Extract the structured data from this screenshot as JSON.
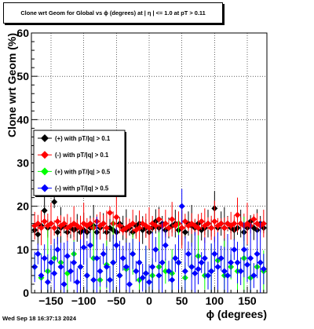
{
  "title": "Clone wrt Geom for Global vs ϕ (degrees) at |  η | <= 1.0 at pT > 0.11",
  "footer": "Wed Sep 18 16:37:13 2024",
  "chart_data": {
    "type": "scatter",
    "title": "Clone wrt Geom for Global vs ϕ (degrees) at |  η | <= 1.0 at pT > 0.11",
    "xlabel": "ϕ (degrees)",
    "ylabel": "Clone wrt Geom (%)",
    "xlim": [
      -180,
      180
    ],
    "ylim": [
      0,
      60
    ],
    "grid": true,
    "legend_position": "center-left",
    "x_ticks": [
      -150,
      -100,
      -50,
      0,
      50,
      100,
      150
    ],
    "x_tick_labels": [
      "−150",
      "−100",
      "−50",
      "0",
      "50",
      "100",
      "150"
    ],
    "y_ticks": [
      0,
      10,
      20,
      30,
      40,
      50,
      60
    ],
    "y_tick_labels": [
      "0",
      "10",
      "20",
      "30",
      "40",
      "50",
      "60"
    ],
    "series": [
      {
        "name": "(+) with pT/|q| > 0.1",
        "color": "#000000",
        "x": [
          -175,
          -170,
          -165,
          -160,
          -155,
          -150,
          -145,
          -140,
          -135,
          -130,
          -125,
          -120,
          -115,
          -110,
          -105,
          -100,
          -95,
          -90,
          -85,
          -80,
          -75,
          -70,
          -65,
          -60,
          -55,
          -50,
          -45,
          -40,
          -35,
          -30,
          -25,
          -20,
          -15,
          -10,
          -5,
          0,
          5,
          10,
          15,
          20,
          25,
          30,
          35,
          40,
          45,
          50,
          55,
          60,
          65,
          70,
          75,
          80,
          85,
          90,
          95,
          100,
          105,
          110,
          115,
          120,
          125,
          130,
          135,
          140,
          145,
          150,
          155,
          160,
          165,
          170,
          175
        ],
        "y": [
          14.5,
          13.5,
          15.5,
          19,
          15,
          16,
          21,
          14,
          15,
          15.5,
          14,
          15,
          14.5,
          15,
          14,
          14.5,
          14,
          15,
          15.5,
          14,
          15,
          16,
          14,
          15,
          14.5,
          14,
          16,
          15,
          14.5,
          15,
          14,
          15.5,
          16,
          14.5,
          15,
          14,
          15,
          16.5,
          15,
          16,
          14.5,
          15,
          15.5,
          16,
          14.5,
          15,
          14,
          16,
          15.5,
          15,
          16,
          14.5,
          15,
          16,
          15,
          19.5,
          15,
          16,
          15,
          16,
          15,
          14.5,
          15,
          16,
          14,
          15,
          16.5,
          15,
          14.5,
          16,
          15
        ]
      },
      {
        "name": "(-) with pT/|q| > 0.1",
        "color": "#ff0000",
        "x": [
          -175,
          -170,
          -165,
          -160,
          -155,
          -150,
          -145,
          -140,
          -135,
          -130,
          -125,
          -120,
          -115,
          -110,
          -105,
          -100,
          -95,
          -90,
          -85,
          -80,
          -75,
          -70,
          -65,
          -60,
          -55,
          -50,
          -45,
          -40,
          -35,
          -30,
          -25,
          -20,
          -15,
          -10,
          -5,
          0,
          5,
          10,
          15,
          20,
          25,
          30,
          35,
          40,
          45,
          50,
          55,
          60,
          65,
          70,
          75,
          80,
          85,
          90,
          95,
          100,
          105,
          110,
          115,
          120,
          125,
          130,
          135,
          140,
          145,
          150,
          155,
          160,
          165,
          170,
          175
        ],
        "y": [
          15.5,
          16,
          15,
          16.5,
          15.5,
          16,
          15,
          16.5,
          15.5,
          16,
          15,
          15.5,
          16,
          15.5,
          15,
          16,
          15.5,
          16,
          15,
          16.5,
          15.5,
          16,
          15,
          18.5,
          16,
          17.5,
          15.5,
          14.5,
          15,
          15.5,
          16,
          14.5,
          15,
          16,
          15.5,
          15,
          16,
          15.5,
          17,
          15.5,
          16,
          15,
          17,
          15.5,
          16,
          15,
          16.5,
          15.5,
          16,
          15.5,
          15,
          16.5,
          15.5,
          16,
          15,
          16.5,
          15.5,
          16,
          15,
          16,
          15.5,
          16,
          18,
          16,
          15.5,
          16,
          15.5,
          17,
          16,
          15.5,
          16
        ]
      },
      {
        "name": "(+) with pT/|q| > 0.5",
        "color": "#00ff00",
        "x": [
          -175,
          -165,
          -155,
          -145,
          -135,
          -125,
          -115,
          -105,
          -95,
          -85,
          -75,
          -65,
          -55,
          -45,
          -35,
          -25,
          -15,
          -5,
          5,
          15,
          25,
          35,
          45,
          55,
          65,
          75,
          85,
          95,
          105,
          115,
          125,
          135,
          145,
          155,
          165,
          175
        ],
        "y": [
          6,
          3.5,
          5,
          8,
          7,
          4.5,
          9,
          6,
          4,
          8,
          3,
          6.5,
          7,
          4,
          5.5,
          9,
          3,
          4.5,
          4,
          6,
          5,
          4.5,
          7,
          3.5,
          6,
          8.5,
          4,
          5,
          7.5,
          4,
          6,
          5,
          8,
          3.5,
          6,
          5
        ]
      },
      {
        "name": "(-) with pT/|q| > 0.5",
        "color": "#0000ff",
        "x": [
          -175,
          -170,
          -165,
          -160,
          -155,
          -150,
          -145,
          -140,
          -135,
          -130,
          -125,
          -120,
          -115,
          -110,
          -105,
          -100,
          -95,
          -90,
          -85,
          -80,
          -75,
          -70,
          -65,
          -60,
          -55,
          -50,
          -45,
          -40,
          -35,
          -30,
          -25,
          -20,
          -15,
          -10,
          -5,
          0,
          5,
          10,
          15,
          20,
          25,
          30,
          35,
          40,
          45,
          50,
          55,
          60,
          65,
          70,
          75,
          80,
          85,
          90,
          95,
          100,
          105,
          110,
          115,
          120,
          125,
          130,
          135,
          140,
          145,
          150,
          155,
          160,
          165,
          170,
          175
        ],
        "y": [
          6,
          9,
          4,
          8,
          2.5,
          7,
          4.5,
          10,
          6,
          2,
          8.5,
          5,
          7,
          2.5,
          6,
          10.5,
          4,
          11,
          3,
          8,
          5,
          9,
          6,
          3,
          7,
          11,
          4,
          8,
          6,
          2,
          9,
          5,
          7,
          3.5,
          4.5,
          2.5,
          6,
          10,
          4,
          7,
          11,
          5,
          3,
          8,
          7,
          20,
          5,
          9,
          6,
          4.5,
          5.5,
          7,
          8,
          4,
          5,
          9,
          6,
          8,
          5,
          4,
          7,
          10,
          7,
          5,
          10,
          6.5,
          8,
          4,
          9,
          7,
          5.5
        ]
      }
    ]
  }
}
